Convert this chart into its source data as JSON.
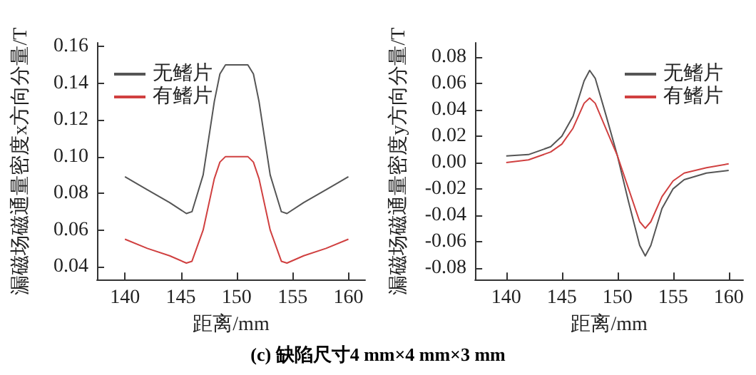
{
  "chart_data": [
    {
      "type": "line",
      "xlabel": "距离/mm",
      "ylabel": "漏磁场磁通量密度x方向分量/T",
      "legend": "top left",
      "grid": false,
      "marker": "none",
      "line_style": "solid",
      "annotations": [
        "(c) 缺陷尺寸4 mm×4 mm×3 mm"
      ],
      "xlim": [
        137.5,
        161.5
      ],
      "xticks": [
        140,
        145,
        150,
        155,
        160
      ],
      "ylim": [
        0.033,
        0.162
      ],
      "yticks": [
        0.04,
        0.06,
        0.08,
        {
          "value": 0.1,
          "label": "0.10"
        },
        0.12,
        0.14,
        0.16
      ],
      "x": [
        140,
        142,
        144,
        145.5,
        146,
        147,
        148,
        148.5,
        149,
        151,
        151.5,
        152,
        153,
        154,
        154.5,
        156,
        158,
        160
      ],
      "series": [
        {
          "name": "无鳍片",
          "color": "#555555",
          "values": [
            0.089,
            0.082,
            0.075,
            0.069,
            0.07,
            0.09,
            0.13,
            0.145,
            0.15,
            0.15,
            0.145,
            0.13,
            0.09,
            0.07,
            0.069,
            0.075,
            0.082,
            0.089
          ]
        },
        {
          "name": "有鳍片",
          "color": "#d04040",
          "values": [
            0.055,
            0.05,
            0.046,
            0.042,
            0.043,
            0.06,
            0.088,
            0.097,
            0.1,
            0.1,
            0.097,
            0.088,
            0.06,
            0.043,
            0.042,
            0.046,
            0.05,
            0.055
          ]
        }
      ]
    },
    {
      "type": "line",
      "xlabel": "距离/mm",
      "ylabel": "漏磁场磁通量密度y方向分量/T",
      "legend": "top right",
      "grid": false,
      "marker": "none",
      "line_style": "solid",
      "xlim": [
        137.2,
        161.3
      ],
      "xticks": [
        140,
        145,
        150,
        155,
        160
      ],
      "ylim": [
        -0.089,
        0.091
      ],
      "yticks": [
        -0.08,
        -0.06,
        -0.04,
        -0.02,
        {
          "value": 0,
          "label": "0.00"
        },
        0.02,
        0.04,
        0.06,
        0.08
      ],
      "x": [
        140,
        142,
        144,
        145,
        146,
        147,
        147.5,
        148,
        149,
        150,
        151,
        152,
        152.5,
        153,
        154,
        155,
        156,
        158,
        160
      ],
      "series": [
        {
          "name": "无鳍片",
          "color": "#555555",
          "values": [
            0.005,
            0.006,
            0.012,
            0.02,
            0.035,
            0.062,
            0.07,
            0.064,
            0.035,
            0.005,
            -0.03,
            -0.063,
            -0.071,
            -0.063,
            -0.035,
            -0.02,
            -0.013,
            -0.008,
            -0.006
          ]
        },
        {
          "name": "有鳍片",
          "color": "#d04040",
          "values": [
            0.0,
            0.002,
            0.008,
            0.014,
            0.026,
            0.045,
            0.049,
            0.045,
            0.025,
            0.005,
            -0.02,
            -0.045,
            -0.05,
            -0.045,
            -0.026,
            -0.014,
            -0.008,
            -0.004,
            -0.001
          ]
        }
      ]
    }
  ]
}
